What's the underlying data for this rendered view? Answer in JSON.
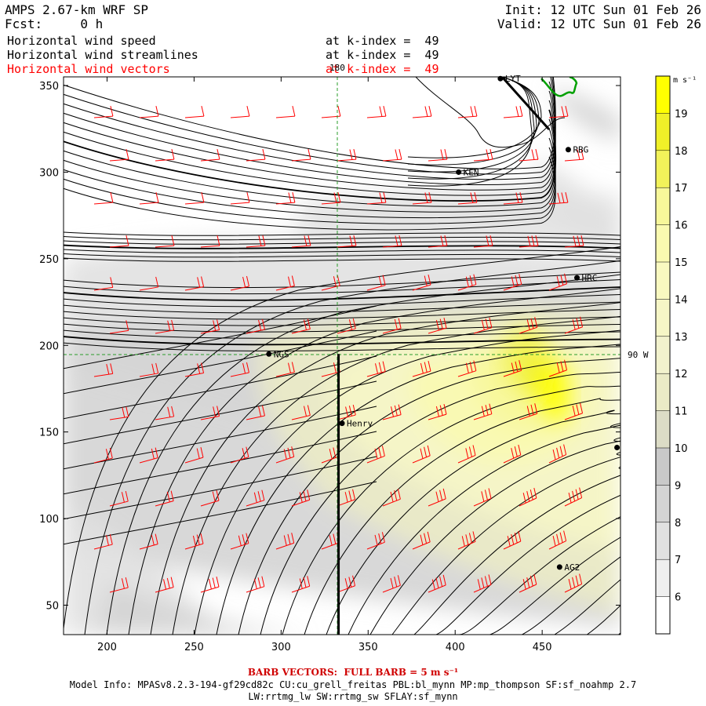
{
  "header": {
    "model": "AMPS 2.67-km WRF SP",
    "forecast": "Fcst:     0 h",
    "init": "Init: 12 UTC Sun 01 Feb 26",
    "valid": "Valid: 12 UTC Sun 01 Feb 26",
    "layers": [
      {
        "name": "Horizontal wind speed",
        "level": "at k-index =  49",
        "color": "#000000"
      },
      {
        "name": "Horizontal wind streamlines",
        "level": "at k-index =  49",
        "color": "#000000"
      },
      {
        "name": "Horizontal wind vectors",
        "level": "at k-index =  49",
        "color": "#ff0000"
      }
    ]
  },
  "map": {
    "x_range": [
      175,
      495
    ],
    "y_range": [
      33,
      355
    ],
    "x_ticks": [
      200,
      250,
      300,
      350,
      400,
      450
    ],
    "y_ticks": [
      50,
      100,
      150,
      200,
      250,
      300,
      350
    ],
    "meridian_label": "180",
    "parallel_label": "90 W",
    "stations": [
      {
        "name": "LYT",
        "x": 426,
        "y": 354
      },
      {
        "name": "RBG",
        "x": 465,
        "y": 313
      },
      {
        "name": "KEN",
        "x": 402,
        "y": 300
      },
      {
        "name": "HRC",
        "x": 470,
        "y": 239
      },
      {
        "name": "NGS",
        "x": 293,
        "y": 195
      },
      {
        "name": "Henry",
        "x": 335,
        "y": 155
      },
      {
        "name": "",
        "x": 493,
        "y": 141
      },
      {
        "name": "AG2",
        "x": 460,
        "y": 72
      }
    ],
    "section_line": {
      "x": 333,
      "y_from": 33,
      "y_to": 195
    },
    "colors": {
      "streamline": "#000000",
      "barb": "#ff0000",
      "coast": "#00a000"
    }
  },
  "colorbar": {
    "unit": "m s⁻¹",
    "levels": [
      6,
      7,
      8,
      9,
      10,
      11,
      12,
      13,
      14,
      15,
      16,
      17,
      18,
      19
    ],
    "colors": [
      "#ffffff",
      "#efefef",
      "#e1e1e1",
      "#d4d4d4",
      "#c9c9c9",
      "#dcdcc6",
      "#ebebc6",
      "#f2f2cd",
      "#f6f6c6",
      "#f9f9c0",
      "#fafab0",
      "#f7f79a",
      "#f2f25a",
      "#f0f028",
      "#ffff00"
    ]
  },
  "footer": {
    "barb_note": "BARB VECTORS:  FULL BARB = 5 m s⁻¹",
    "model_info_1": "Model Info: MPASv8.2.3-194-gf29cd82c CU:cu_grell_freitas PBL:bl_mynn MP:mp_thompson SF:sf_noahmp 2.7",
    "model_info_2": "LW:rrtmg_lw SW:rrtmg_sw SFLAY:sf_mynn"
  }
}
